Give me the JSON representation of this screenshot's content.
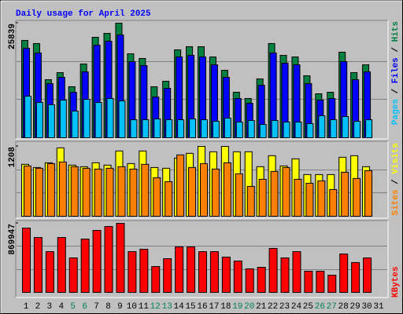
{
  "chart_data": {
    "type": "bar",
    "title": "Daily usage for April 2025",
    "legend_separator": " / ",
    "categories": [
      "1",
      "2",
      "3",
      "4",
      "5",
      "6",
      "7",
      "8",
      "9",
      "10",
      "11",
      "12",
      "13",
      "14",
      "15",
      "16",
      "17",
      "18",
      "19",
      "20",
      "21",
      "22",
      "23",
      "24",
      "25",
      "26",
      "27",
      "28",
      "29",
      "30",
      "31"
    ],
    "category_colors": [
      "#000000",
      "#000000",
      "#000000",
      "#000000",
      "#00805a",
      "#00805a",
      "#000000",
      "#000000",
      "#000000",
      "#000000",
      "#000000",
      "#00805a",
      "#00805a",
      "#000000",
      "#000000",
      "#000000",
      "#000000",
      "#000000",
      "#00805a",
      "#00805a",
      "#000000",
      "#000000",
      "#000000",
      "#000000",
      "#000000",
      "#00805a",
      "#00805a",
      "#000000",
      "#000000",
      "#000000",
      "#000000"
    ],
    "panels": [
      {
        "ylim": [
          0,
          25839
        ],
        "yticks": [
          25839
        ],
        "series": [
          {
            "name": "Hits",
            "color": "#008040",
            "values": [
              21948,
              21240,
              13098,
              14691,
              11505,
              16638,
              22656,
              23541,
              25839,
              18939,
              17877,
              11505,
              12744,
              19824,
              20532,
              20532,
              18231,
              15222,
              10266,
              8850,
              13275,
              21240,
              18585,
              18231,
              13983,
              9912,
              10266,
              19293,
              14691,
              16461,
              null
            ]
          },
          {
            "name": "Files",
            "color": "#0000ff",
            "values": [
              20178,
              19116,
              12213,
              13629,
              10266,
              14868,
              20886,
              21771,
              23187,
              17169,
              16284,
              9204,
              11151,
              18231,
              18585,
              18231,
              16461,
              13629,
              8850,
              7788,
              11859,
              19116,
              16815,
              16461,
              12213,
              8496,
              8850,
              17169,
              13098,
              14868,
              null
            ]
          },
          {
            "name": "Pages",
            "color": "#00c0ff",
            "values": [
              9381,
              7965,
              7434,
              8496,
              6018,
              8673,
              7965,
              8850,
              8319,
              4071,
              4071,
              4248,
              4071,
              4071,
              4248,
              4071,
              3717,
              4425,
              3540,
              3894,
              3009,
              3894,
              3540,
              3540,
              3186,
              4956,
              4071,
              4779,
              3717,
              4071,
              null
            ]
          }
        ]
      },
      {
        "ylim": [
          0,
          1208
        ],
        "yticks": [
          1208
        ],
        "series": [
          {
            "name": "Visits",
            "color": "#ffff00",
            "values": [
              898,
              843,
              925,
              1183,
              884,
              857,
              925,
              884,
              1129,
              911,
              1129,
              843,
              830,
              1006,
              1088,
              1208,
              1115,
              1208,
              1115,
              1115,
              857,
              1047,
              870,
              993,
              721,
              721,
              721,
              1020,
              1047,
              857,
              null
            ]
          },
          {
            "name": "Sites",
            "color": "#ff8000",
            "values": [
              870,
              830,
              911,
              938,
              857,
              830,
              816,
              830,
              857,
              816,
              898,
              666,
              598,
              1061,
              843,
              911,
              816,
              925,
              734,
              517,
              639,
              775,
              843,
              639,
              571,
              612,
              462,
              762,
              653,
              789,
              null
            ]
          }
        ]
      },
      {
        "ylim": [
          0,
          869947
        ],
        "yticks": [
          869947
        ],
        "series": [
          {
            "name": "KBytes",
            "color": "#ff0000",
            "values": [
              810650,
              692000,
              514000,
              692000,
              435000,
              672000,
              781000,
              830000,
              869947,
              514000,
              544000,
              326000,
              425000,
              573000,
              573000,
              514000,
              514000,
              445000,
              395000,
              297000,
              316000,
              554000,
              435000,
              514000,
              267000,
              267000,
              217000,
              484000,
              376000,
              435000,
              null
            ]
          }
        ]
      }
    ]
  }
}
